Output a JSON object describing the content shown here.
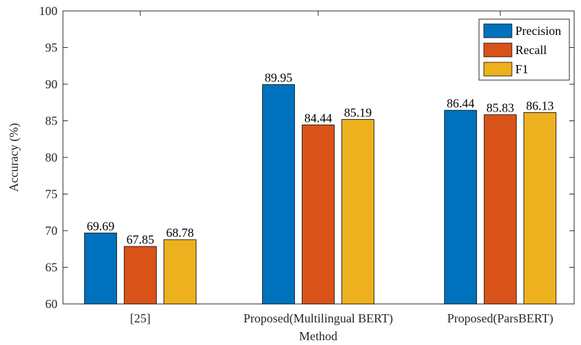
{
  "chart_data": {
    "type": "bar",
    "categories": [
      "[25]",
      "Proposed(Multilingual BERT)",
      "Proposed(ParsBERT)"
    ],
    "series": [
      {
        "name": "Precision",
        "values": [
          69.69,
          89.95,
          86.44
        ],
        "color": "#0072BD"
      },
      {
        "name": "Recall",
        "values": [
          67.85,
          84.44,
          85.83
        ],
        "color": "#D95319"
      },
      {
        "name": "F1",
        "values": [
          68.78,
          85.19,
          86.13
        ],
        "color": "#EDB120"
      }
    ],
    "data_labels": [
      [
        "69.69",
        "89.95",
        "86.44"
      ],
      [
        "67.85",
        "84.44",
        "85.83"
      ],
      [
        "68.78",
        "85.19",
        "86.13"
      ]
    ],
    "xlabel": "Method",
    "ylabel": "Accuracy (%)",
    "ylim": [
      60,
      100
    ],
    "yticks": [
      "60",
      "65",
      "70",
      "75",
      "80",
      "85",
      "90",
      "95",
      "100"
    ],
    "grid": false,
    "legend_position": "top-right"
  }
}
